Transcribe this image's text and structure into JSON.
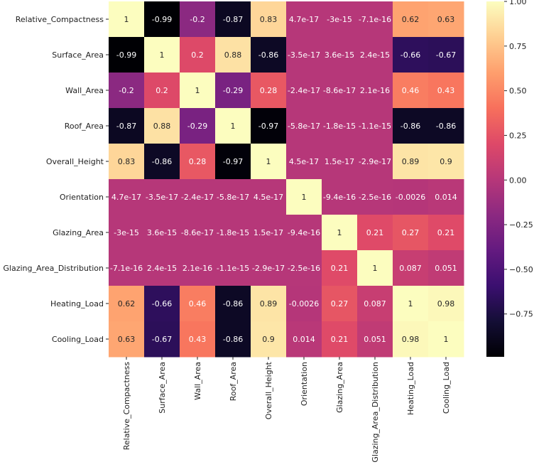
{
  "chart_data": {
    "type": "heatmap",
    "title": "",
    "colormap": "magma",
    "vmin": -0.99,
    "vmax": 1.0,
    "row_labels": [
      "Relative_Compactness",
      "Surface_Area",
      "Wall_Area",
      "Roof_Area",
      "Overall_Height",
      "Orientation",
      "Glazing_Area",
      "Glazing_Area_Distribution",
      "Heating_Load",
      "Cooling_Load"
    ],
    "col_labels": [
      "Relative_Compactness",
      "Surface_Area",
      "Wall_Area",
      "Roof_Area",
      "Overall_Height",
      "Orientation",
      "Glazing_Area",
      "Glazing_Area_Distribution",
      "Heating_Load",
      "Cooling_Load"
    ],
    "values": [
      [
        1,
        -0.99,
        -0.2,
        -0.87,
        0.83,
        4.7e-17,
        -3e-15,
        -7.1e-16,
        0.62,
        0.63
      ],
      [
        -0.99,
        1,
        0.2,
        0.88,
        -0.86,
        -3.5e-17,
        3.6e-15,
        2.4e-15,
        -0.66,
        -0.67
      ],
      [
        -0.2,
        0.2,
        1,
        -0.29,
        0.28,
        -2.4e-17,
        -8.6e-17,
        2.1e-16,
        0.46,
        0.43
      ],
      [
        -0.87,
        0.88,
        -0.29,
        1,
        -0.97,
        -5.8e-17,
        -1.8e-15,
        -1.1e-15,
        -0.86,
        -0.86
      ],
      [
        0.83,
        -0.86,
        0.28,
        -0.97,
        1,
        4.5e-17,
        1.5e-17,
        -2.9e-17,
        0.89,
        0.9
      ],
      [
        4.7e-17,
        -3.5e-17,
        -2.4e-17,
        -5.8e-17,
        4.5e-17,
        1,
        -9.4e-16,
        -2.5e-16,
        -0.0026,
        0.014
      ],
      [
        -3e-15,
        3.6e-15,
        -8.6e-17,
        -1.8e-15,
        1.5e-17,
        -9.4e-16,
        1,
        0.21,
        0.27,
        0.21
      ],
      [
        -7.1e-16,
        2.4e-15,
        2.1e-16,
        -1.1e-15,
        -2.9e-17,
        -2.5e-16,
        0.21,
        1,
        0.087,
        0.051
      ],
      [
        0.62,
        -0.66,
        0.46,
        -0.86,
        0.89,
        -0.0026,
        0.27,
        0.087,
        1,
        0.98
      ],
      [
        0.63,
        -0.67,
        0.43,
        -0.86,
        0.9,
        0.014,
        0.21,
        0.051,
        0.98,
        1
      ]
    ],
    "colorbar": {
      "ticks": [
        1.0,
        0.75,
        0.5,
        0.25,
        0.0,
        -0.25,
        -0.5,
        -0.75
      ],
      "tick_labels": [
        "1.00",
        "0.75",
        "0.50",
        "0.25",
        "0.00",
        "−0.25",
        "−0.50",
        "−0.75"
      ]
    }
  }
}
